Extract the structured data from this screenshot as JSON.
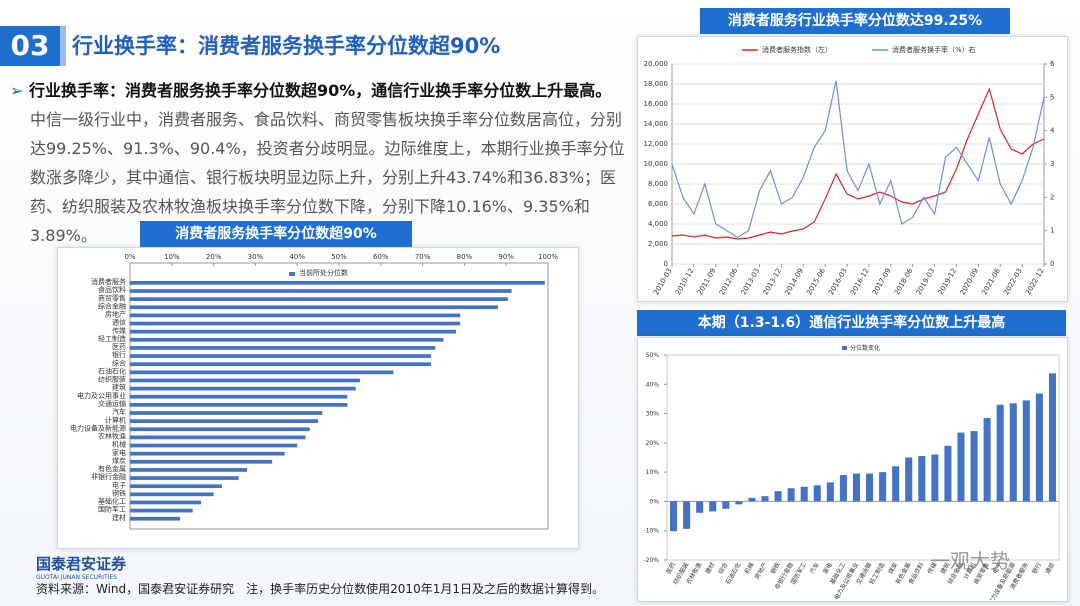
{
  "header": {
    "number": "03",
    "title": "行业换手率：消费者服务换手率分位数超90%"
  },
  "body": {
    "lead": "行业换手率：消费者服务换手率分位数超90%，通信行业换手率分位数上升最高。",
    "text": "中信一级行业中，消费者服务、食品饮料、商贸零售板块换手率分位数居高位，分别达99.25%、91.3%、90.4%，投资者分歧明显。边际维度上，本期行业换手率分位数涨多降少，其中通信、银行板块明显边际上升，分别上升43.74%和36.83%；医药、纺织服装及农林牧渔板块换手率分位数下降，分别下降10.16%、9.35%和3.89%。"
  },
  "chart_data": [
    {
      "type": "hbar",
      "title": "消费者服务换手率分位数超90%",
      "categories": [
        "消费者服务",
        "食品饮料",
        "商贸零售",
        "综合金融",
        "房地产",
        "通信",
        "传媒",
        "轻工制造",
        "医药",
        "银行",
        "综合",
        "石油石化",
        "纺织服装",
        "建筑",
        "电力及公用事业",
        "交通运输",
        "汽车",
        "计算机",
        "电力设备及新能源",
        "农林牧渔",
        "机械",
        "家电",
        "煤炭",
        "有色金属",
        "非银行金融",
        "电子",
        "钢铁",
        "基础化工",
        "国防军工",
        "建材"
      ],
      "series": [
        {
          "name": "当前所处分位数",
          "color": "#4472c4",
          "values": [
            99.25,
            91.3,
            90.4,
            88,
            79,
            79,
            78,
            75,
            73,
            72,
            72,
            63,
            55,
            54,
            52,
            52,
            46,
            45,
            43,
            42,
            40,
            37,
            34,
            28,
            26,
            22,
            20,
            17,
            15,
            12
          ]
        }
      ],
      "xlim": [
        0,
        100
      ],
      "xticks": [
        {
          "value": 0,
          "label": "0%"
        },
        {
          "value": 10,
          "label": "10%"
        },
        {
          "value": 20,
          "label": "20%"
        },
        {
          "value": 30,
          "label": "30%"
        },
        {
          "value": 40,
          "label": "40%"
        },
        {
          "value": 50,
          "label": "50%"
        },
        {
          "value": 60,
          "label": "60%"
        },
        {
          "value": 70,
          "label": "70%"
        },
        {
          "value": 80,
          "label": "80%"
        },
        {
          "value": 90,
          "label": "90%"
        },
        {
          "value": 100,
          "label": "100%"
        }
      ]
    },
    {
      "type": "line",
      "title": "消费者服务行业换手率分位数达99.25%",
      "categories": [
        "2010-03",
        null,
        "2010-12",
        null,
        "2011-09",
        null,
        "2012-06",
        null,
        "2013-03",
        null,
        "2013-12",
        null,
        "2014-09",
        null,
        "2015-06",
        null,
        "2016-03",
        null,
        "2016-12",
        null,
        "2017-09",
        null,
        "2018-06",
        null,
        "2019-03",
        null,
        "2019-12",
        null,
        "2020-09",
        null,
        "2021-06",
        null,
        "2022-03",
        null,
        "2022-12"
      ],
      "series": [
        {
          "name": "消费者服务指数（左）",
          "color": "#d62728",
          "values": [
            2800,
            2900,
            2700,
            2900,
            2600,
            2700,
            2500,
            2600,
            2900,
            3200,
            3000,
            3300,
            3500,
            4200,
            6500,
            9000,
            7000,
            6500,
            6800,
            7200,
            6800,
            6200,
            6000,
            6500,
            6800,
            7200,
            9500,
            12500,
            15000,
            17500,
            13500,
            11500,
            11000,
            12000,
            12500
          ]
        },
        {
          "name": "消费者服务换手率（%）右",
          "color": "#6f8fdc",
          "axis": "y2",
          "values": [
            3.0,
            2.0,
            1.5,
            2.4,
            1.2,
            1.0,
            0.8,
            1.0,
            2.2,
            2.8,
            1.8,
            2.0,
            2.6,
            3.5,
            4.0,
            5.5,
            2.8,
            2.2,
            3.0,
            1.8,
            2.5,
            1.2,
            1.4,
            2.0,
            1.5,
            3.2,
            3.5,
            3.0,
            2.5,
            3.8,
            2.4,
            1.8,
            2.5,
            3.5,
            5.0
          ]
        }
      ],
      "ylim": [
        0,
        20000
      ],
      "yticks": [
        0,
        {
          "value": 2000,
          "label": "2,000"
        },
        {
          "value": 4000,
          "label": "4,000"
        },
        {
          "value": 6000,
          "label": "6,000"
        },
        {
          "value": 8000,
          "label": "8,000"
        },
        {
          "value": 10000,
          "label": "10,000"
        },
        {
          "value": 12000,
          "label": "12,000"
        },
        {
          "value": 14000,
          "label": "14,000"
        },
        {
          "value": 16000,
          "label": "16,000"
        },
        {
          "value": 18000,
          "label": "18,000"
        },
        {
          "value": 20000,
          "label": "20,000"
        }
      ],
      "y2lim": [
        0,
        6
      ],
      "y2ticks": [
        0,
        1,
        2,
        3,
        4,
        5,
        6
      ],
      "grid": true
    },
    {
      "type": "bar",
      "title": "本期（1.3-1.6）通信行业换手率分位数上升最高",
      "categories": [
        "医药",
        "纺织服装",
        "农林牧渔",
        "建材",
        "综合",
        "石油石化",
        "机械",
        "房地产",
        "钢铁",
        "非银行金融",
        "国防军工",
        "汽车",
        "家电",
        "基础化工",
        "电力及公用事业",
        "交通运输",
        "轻工制造",
        "煤炭",
        "有色金属",
        "食品饮料",
        "传媒",
        "建筑",
        "综合金融",
        "计算机",
        "商贸零售",
        "电子",
        "电力设备及新能源",
        "消费者服务",
        "银行",
        "通信"
      ],
      "series": [
        {
          "name": "分位数变化",
          "color": "#4472c4",
          "values": [
            -10.16,
            -9.35,
            -3.89,
            -3.4,
            -2.5,
            -1.0,
            1.2,
            1.8,
            3.5,
            4.5,
            5.0,
            5.5,
            6.5,
            9.0,
            9.5,
            9.5,
            10.0,
            12.0,
            15.0,
            15.5,
            16.0,
            19.0,
            23.5,
            24.0,
            28.5,
            33.0,
            33.5,
            34.5,
            36.83,
            43.74
          ]
        }
      ],
      "ylim": [
        -20,
        50
      ],
      "yticks": [
        {
          "value": -20,
          "label": "-20%"
        },
        {
          "value": -10,
          "label": "-10%"
        },
        {
          "value": 0,
          "label": "0%"
        },
        {
          "value": 10,
          "label": "10%"
        },
        {
          "value": 20,
          "label": "20%"
        },
        {
          "value": 30,
          "label": "30%"
        },
        {
          "value": 40,
          "label": "40%"
        },
        {
          "value": 50,
          "label": "50%"
        }
      ]
    }
  ],
  "footer": {
    "logo": "国泰君安证券",
    "logo_en": "GUOTAI JUNAN SECURITIES",
    "source": "资料来源：Wind，国泰君安证券研究　注，换手率历史分位数使用2010年1月1日及之后的数据计算得到。",
    "watermark": "一观大势"
  }
}
